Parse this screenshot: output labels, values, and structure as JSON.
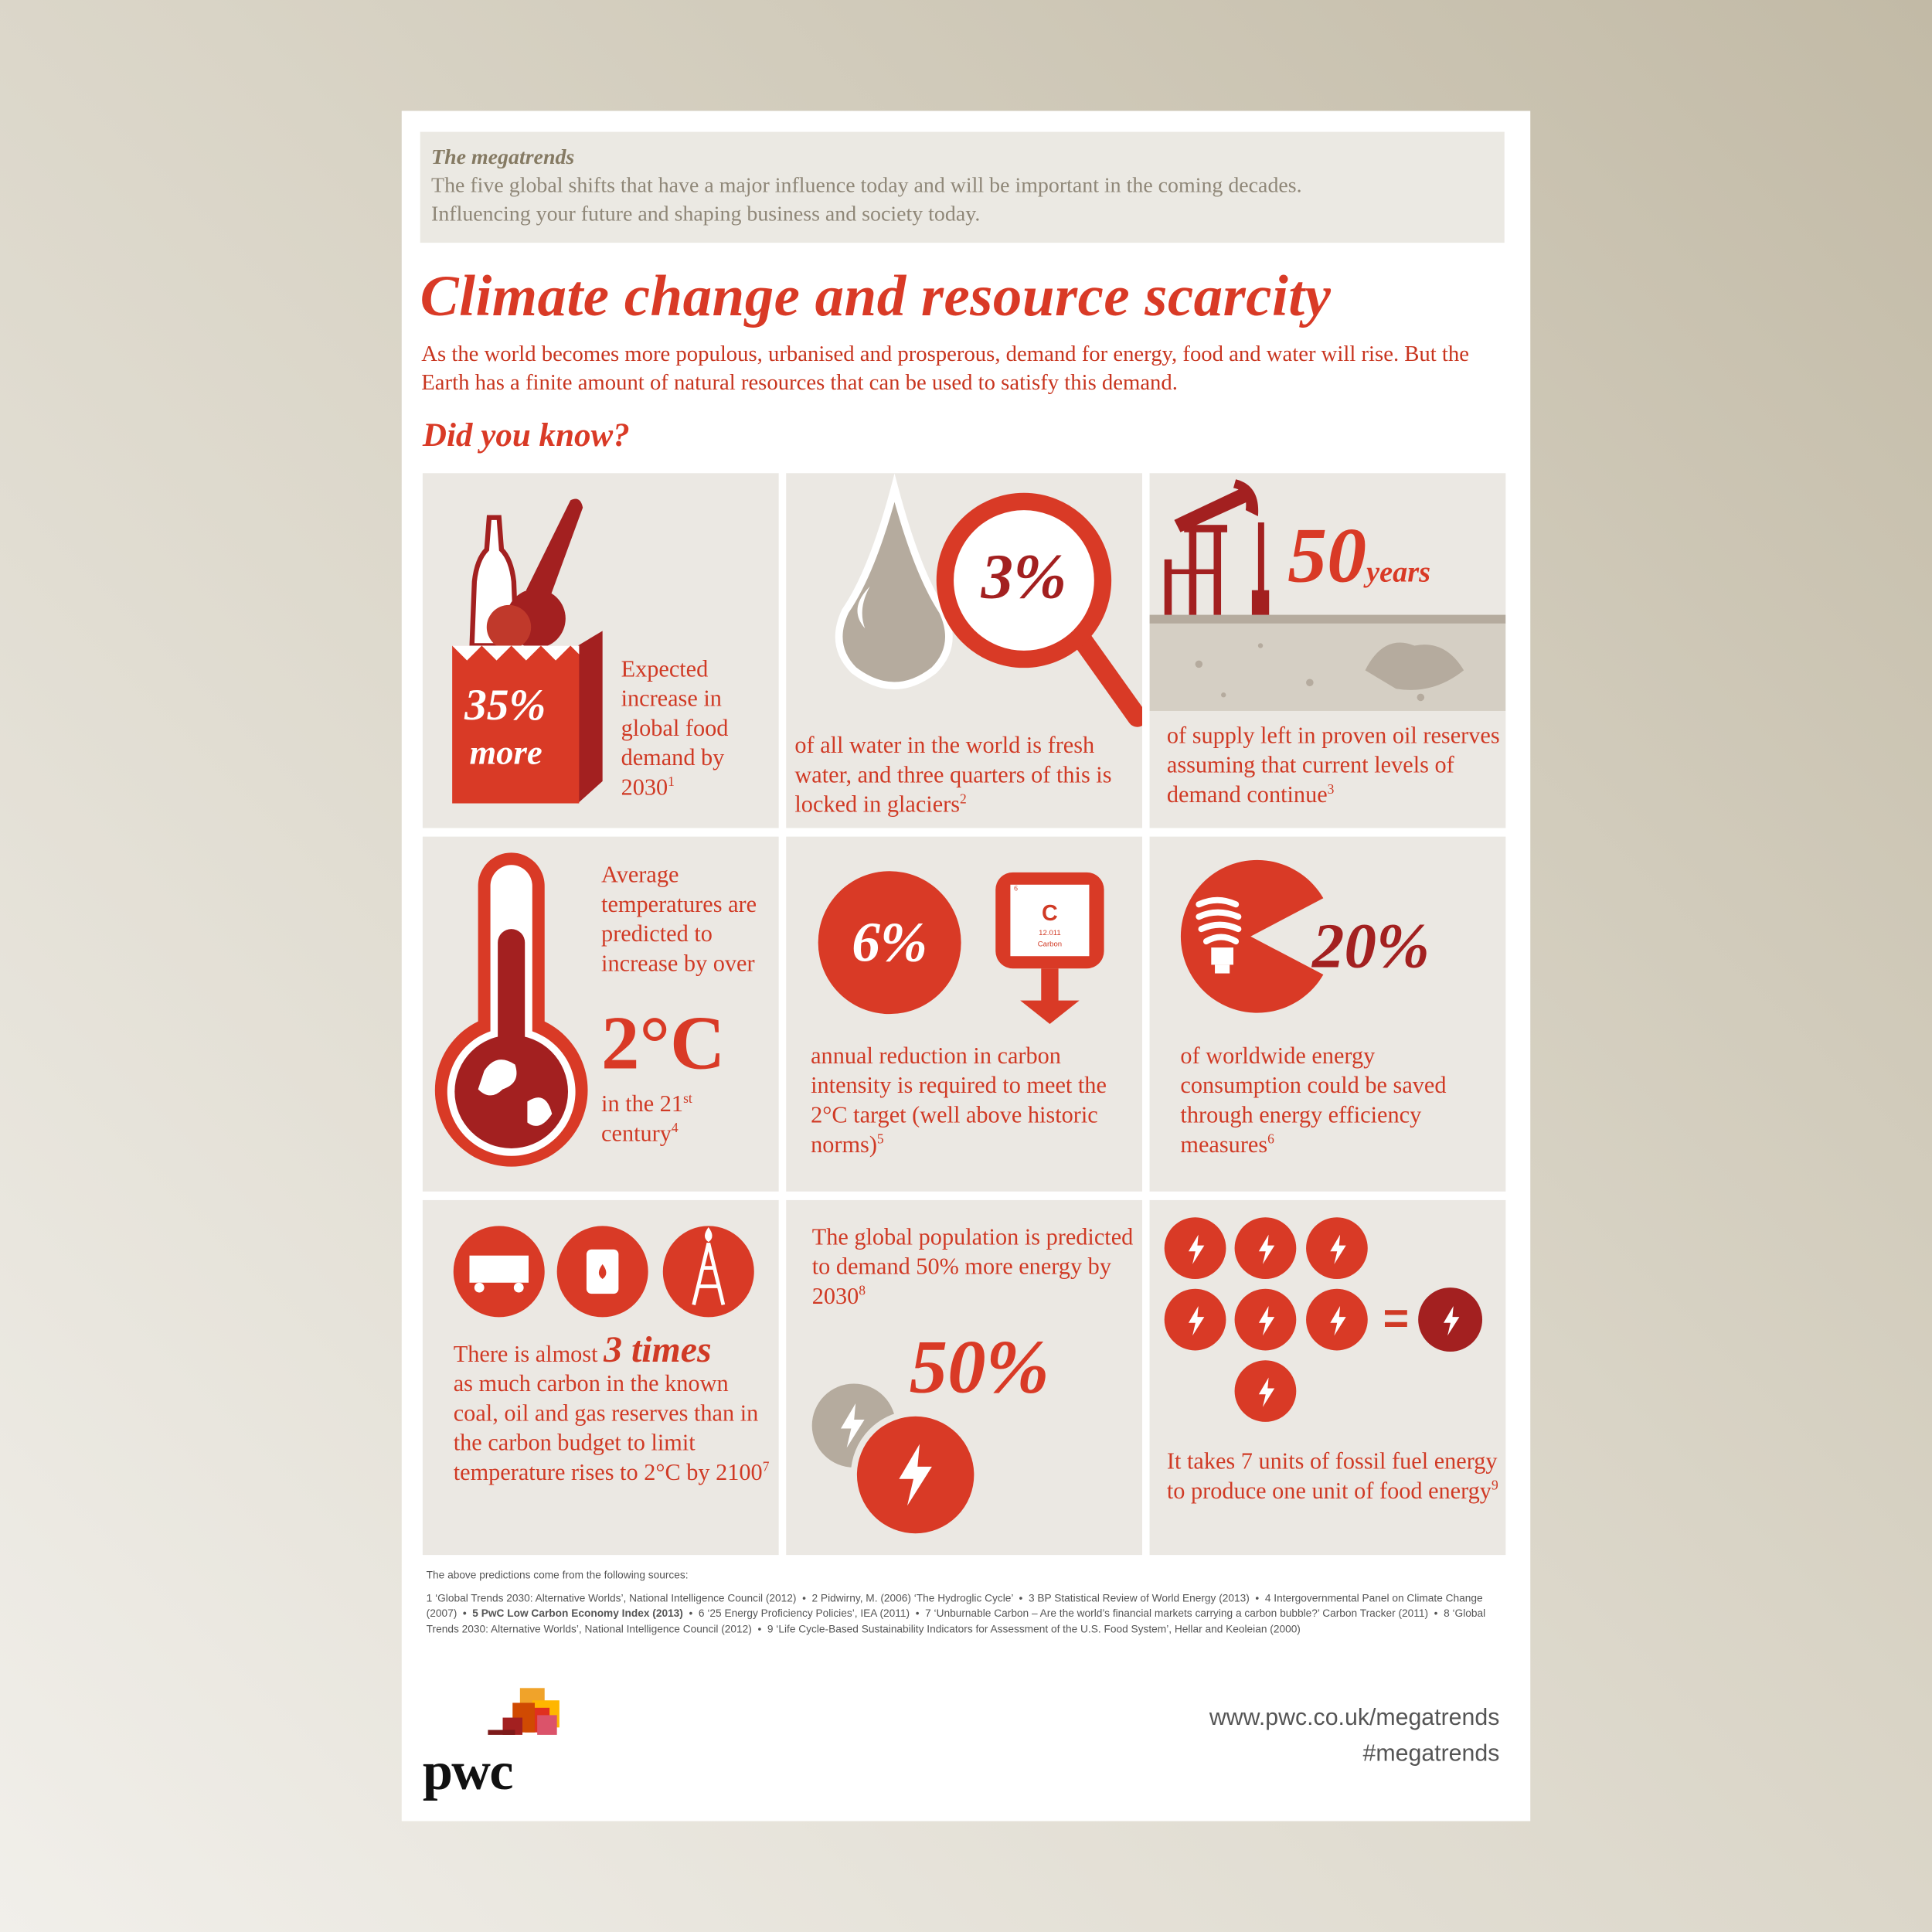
{
  "header": {
    "label": "The megatrends",
    "lines": [
      "The five global shifts that have a major influence today and will be important in the coming decades.",
      "Influencing your future and shaping business and society today."
    ]
  },
  "title": "Climate change and resource scarcity",
  "intro": "As the world becomes more populous, urbanised and prosperous, demand for energy, food and water will rise. But the Earth has a finite amount of natural resources that can be used to satisfy this demand.",
  "subheading": "Did you know?",
  "facts": [
    {
      "figure": "35%",
      "figure_sub": "more",
      "text": "Expected increase in global food demand by 2030",
      "note": "1"
    },
    {
      "figure": "3%",
      "text": "of all water in the world is fresh water, and three quarters of this is locked in glaciers",
      "note": "2"
    },
    {
      "figure": "50",
      "unit": "years",
      "text": "of supply left in proven oil reserves assuming that current levels of demand continue",
      "note": "3"
    },
    {
      "text": "Average temperatures are predicted to increase by over",
      "figure": "2°C",
      "text_after": "in the 21",
      "ordinal": "st",
      "text_end": "century",
      "note": "4"
    },
    {
      "figure": "6%",
      "element": {
        "number": "6",
        "symbol": "C",
        "mass": "12.011",
        "name": "Carbon"
      },
      "text": "annual reduction in carbon intensity is required to meet the 2°C target (well above historic norms)",
      "note": "5"
    },
    {
      "figure": "20%",
      "text": "of worldwide energy consumption could be saved through energy efficiency measures",
      "note": "6"
    },
    {
      "text_before": "There is almost",
      "figure": "3 times",
      "text": "as much carbon in the known coal, oil and gas reserves than in the carbon budget to limit temperature rises to 2°C by 2100",
      "note": "7"
    },
    {
      "text": "The global population is predicted to demand 50% more energy by 2030",
      "note": "8",
      "figure": "50%"
    },
    {
      "equals": "=",
      "text": "It takes 7 units of fossil fuel energy to produce one unit of food energy",
      "note": "9"
    }
  ],
  "sources": {
    "intro": "The above predictions come from the following sources:",
    "items": [
      "1 ‘Global Trends 2030: Alternative Worlds’, National Intelligence Council (2012)",
      "2 Pidwirny, M. (2006) ‘The Hydroglic Cycle’",
      "3 BP Statistical Review of World Energy (2013)",
      "4 Intergovernmental Panel on Climate Change (2007)",
      "5 PwC Low Carbon Economy Index (2013)",
      "6 ‘25 Energy Proficiency Policies’, IEA (2011)",
      "7 ‘Unburnable Carbon – Are the world’s financial markets carrying a carbon bubble?’ Carbon Tracker (2011)",
      "8 ‘Global Trends 2030: Alternative Worlds’, National Intelligence Council (2012)",
      "9 ‘Life Cycle-Based Sustainability Indicators for Assessment of the U.S. Food System’, Hellar and Keoleian (2000)"
    ]
  },
  "footer": {
    "logo": "pwc",
    "url": "www.pwc.co.uk/megatrends",
    "hashtag": "#megatrends"
  }
}
